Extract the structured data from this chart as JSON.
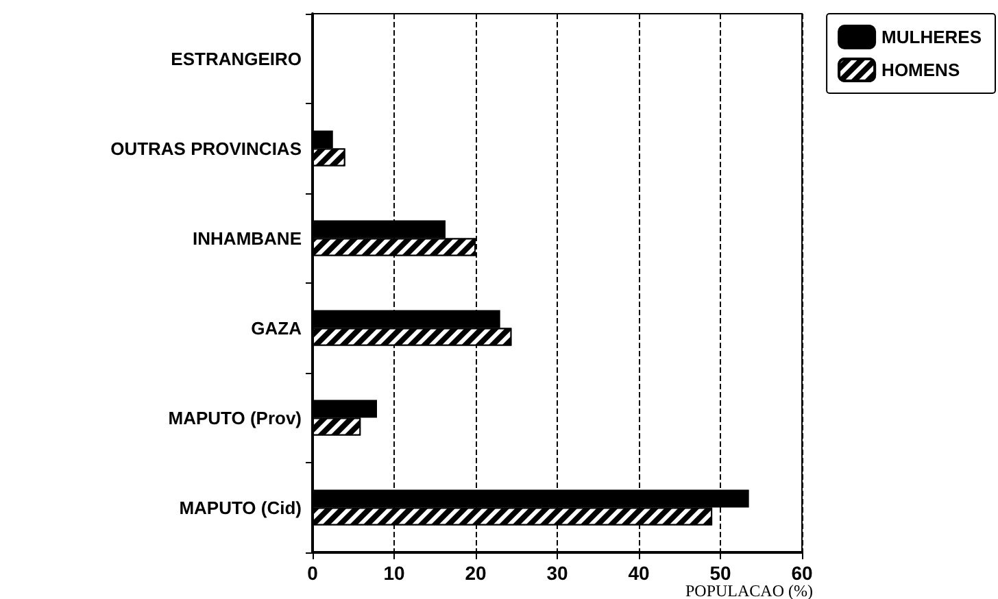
{
  "chart_data": {
    "type": "bar",
    "orientation": "horizontal",
    "categories": [
      "ESTRANGEIRO",
      "OUTRAS PROVINCIAS",
      "INHAMBANE",
      "GAZA",
      "MAPUTO (Prov)",
      "MAPUTO (Cid)"
    ],
    "series": [
      {
        "name": "MULHERES",
        "color": "#000000",
        "values": [
          null,
          2.5,
          16.3,
          23,
          7.9,
          53.5
        ]
      },
      {
        "name": "HOMENS",
        "color": "#000000",
        "values": [
          null,
          4,
          20,
          24.4,
          5.9,
          49
        ]
      }
    ],
    "xlabel": "POPULACAO (%)",
    "xlim": [
      0,
      60
    ],
    "xticks": [
      0,
      10,
      20,
      30,
      40,
      50,
      60
    ],
    "grid": "x",
    "legend": "top right"
  }
}
